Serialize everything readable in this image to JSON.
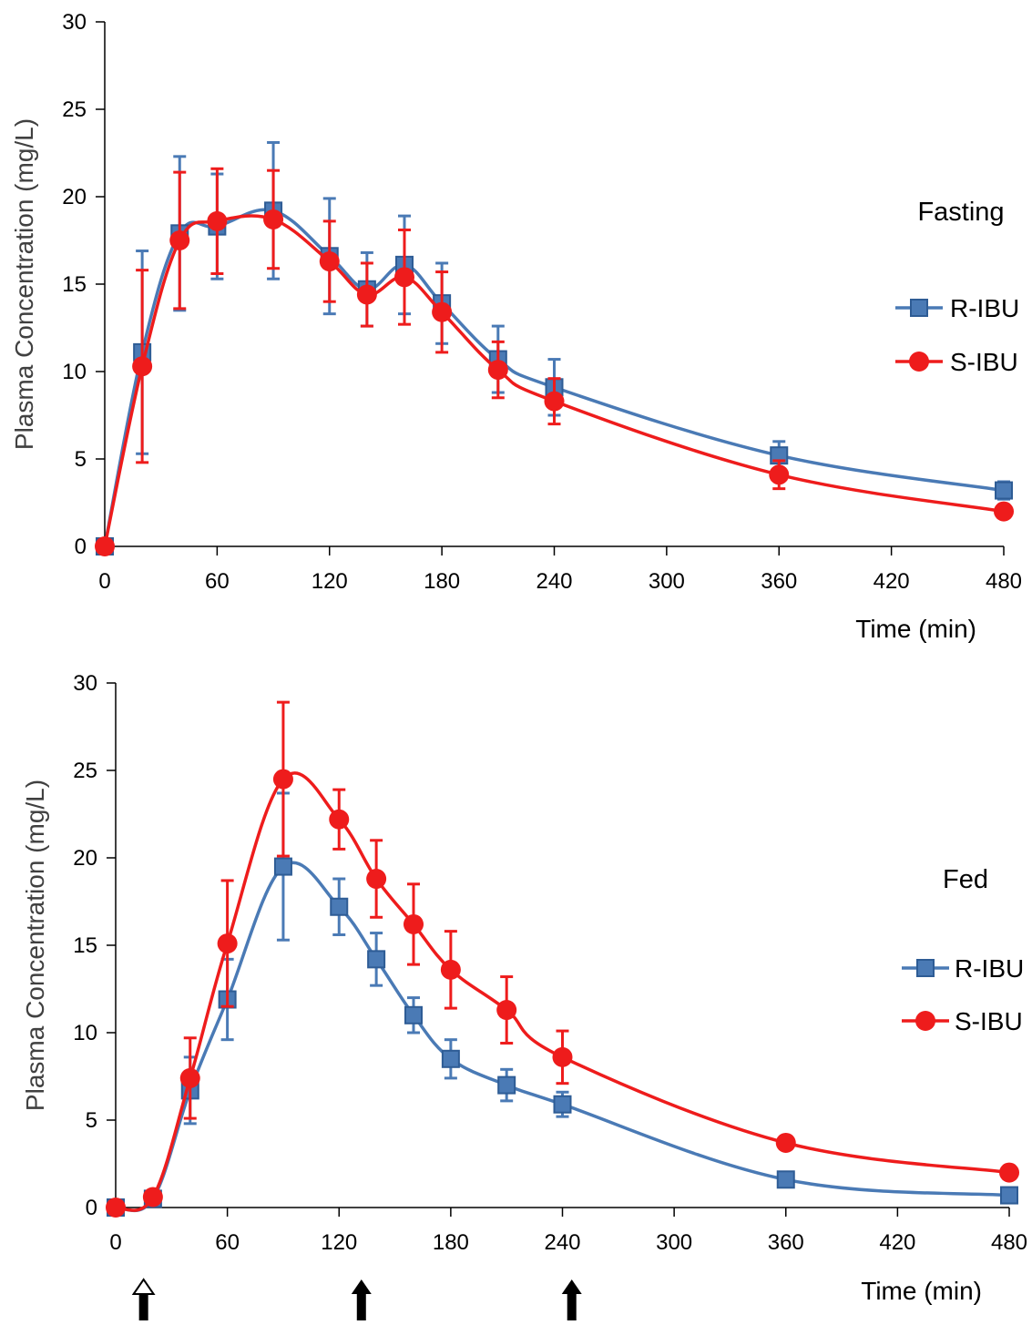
{
  "chart_data": [
    {
      "type": "line",
      "condition_label": "Fasting",
      "xlabel": "Time (min)",
      "ylabel": "Plasma Concentration (mg/L)",
      "xlim": [
        0,
        480
      ],
      "ylim": [
        0,
        30
      ],
      "x_ticks": [
        "0",
        "60",
        "120",
        "180",
        "240",
        "300",
        "360",
        "420",
        "480"
      ],
      "y_ticks": [
        "0",
        "5",
        "10",
        "15",
        "20",
        "25",
        "30"
      ],
      "legend_position": "right",
      "grid": false,
      "series": [
        {
          "name": "R-IBU",
          "color": "#4a7ab5",
          "marker": "square",
          "x": [
            0,
            20,
            40,
            60,
            90,
            120,
            140,
            160,
            180,
            210,
            240,
            360,
            480
          ],
          "y": [
            0,
            11.1,
            17.9,
            18.3,
            19.2,
            16.6,
            14.7,
            16.1,
            13.9,
            10.7,
            9.1,
            5.2,
            3.2
          ],
          "err": [
            0,
            5.8,
            4.4,
            3.0,
            3.9,
            3.3,
            2.1,
            2.8,
            2.3,
            1.9,
            1.6,
            0.8,
            0.5
          ]
        },
        {
          "name": "S-IBU",
          "color": "#ee1c1c",
          "marker": "circle",
          "x": [
            0,
            20,
            40,
            60,
            90,
            120,
            140,
            160,
            180,
            210,
            240,
            360,
            480
          ],
          "y": [
            0,
            10.3,
            17.5,
            18.6,
            18.7,
            16.3,
            14.4,
            15.4,
            13.4,
            10.1,
            8.3,
            4.1,
            2.0
          ],
          "err": [
            0,
            5.5,
            3.9,
            3.0,
            2.8,
            2.3,
            1.8,
            2.7,
            2.3,
            1.6,
            1.3,
            0.8,
            0
          ]
        }
      ]
    },
    {
      "type": "line",
      "condition_label": "Fed",
      "xlabel": "Time (min)",
      "ylabel": "Plasma Concentration (mg/L)",
      "xlim": [
        0,
        480
      ],
      "ylim": [
        0,
        30
      ],
      "x_ticks": [
        "0",
        "60",
        "120",
        "180",
        "240",
        "300",
        "360",
        "420",
        "480"
      ],
      "y_ticks": [
        "0",
        "5",
        "10",
        "15",
        "20",
        "25",
        "30"
      ],
      "legend_position": "right",
      "grid": false,
      "arrows": [
        {
          "x": 15,
          "style": "hollow-head"
        },
        {
          "x": 132,
          "style": "solid"
        },
        {
          "x": 245,
          "style": "solid"
        }
      ],
      "series": [
        {
          "name": "R-IBU",
          "color": "#4a7ab5",
          "marker": "square",
          "x": [
            0,
            20,
            40,
            60,
            90,
            120,
            140,
            160,
            180,
            210,
            240,
            360,
            480
          ],
          "y": [
            0,
            0.5,
            6.7,
            11.9,
            19.5,
            17.2,
            14.2,
            11.0,
            8.5,
            7.0,
            5.9,
            1.6,
            0.7
          ],
          "err": [
            0,
            0,
            1.9,
            2.3,
            4.2,
            1.6,
            1.5,
            1.0,
            1.1,
            0.9,
            0.7,
            0.3,
            0.2
          ]
        },
        {
          "name": "S-IBU",
          "color": "#ee1c1c",
          "marker": "circle",
          "x": [
            0,
            20,
            40,
            60,
            90,
            120,
            140,
            160,
            180,
            210,
            240,
            360,
            480
          ],
          "y": [
            0,
            0.6,
            7.4,
            15.1,
            24.5,
            22.2,
            18.8,
            16.2,
            13.6,
            11.3,
            8.6,
            3.7,
            2.0
          ],
          "err": [
            0,
            0,
            2.3,
            3.6,
            4.4,
            1.7,
            2.2,
            2.3,
            2.2,
            1.9,
            1.5,
            0.3,
            0
          ]
        }
      ]
    }
  ]
}
